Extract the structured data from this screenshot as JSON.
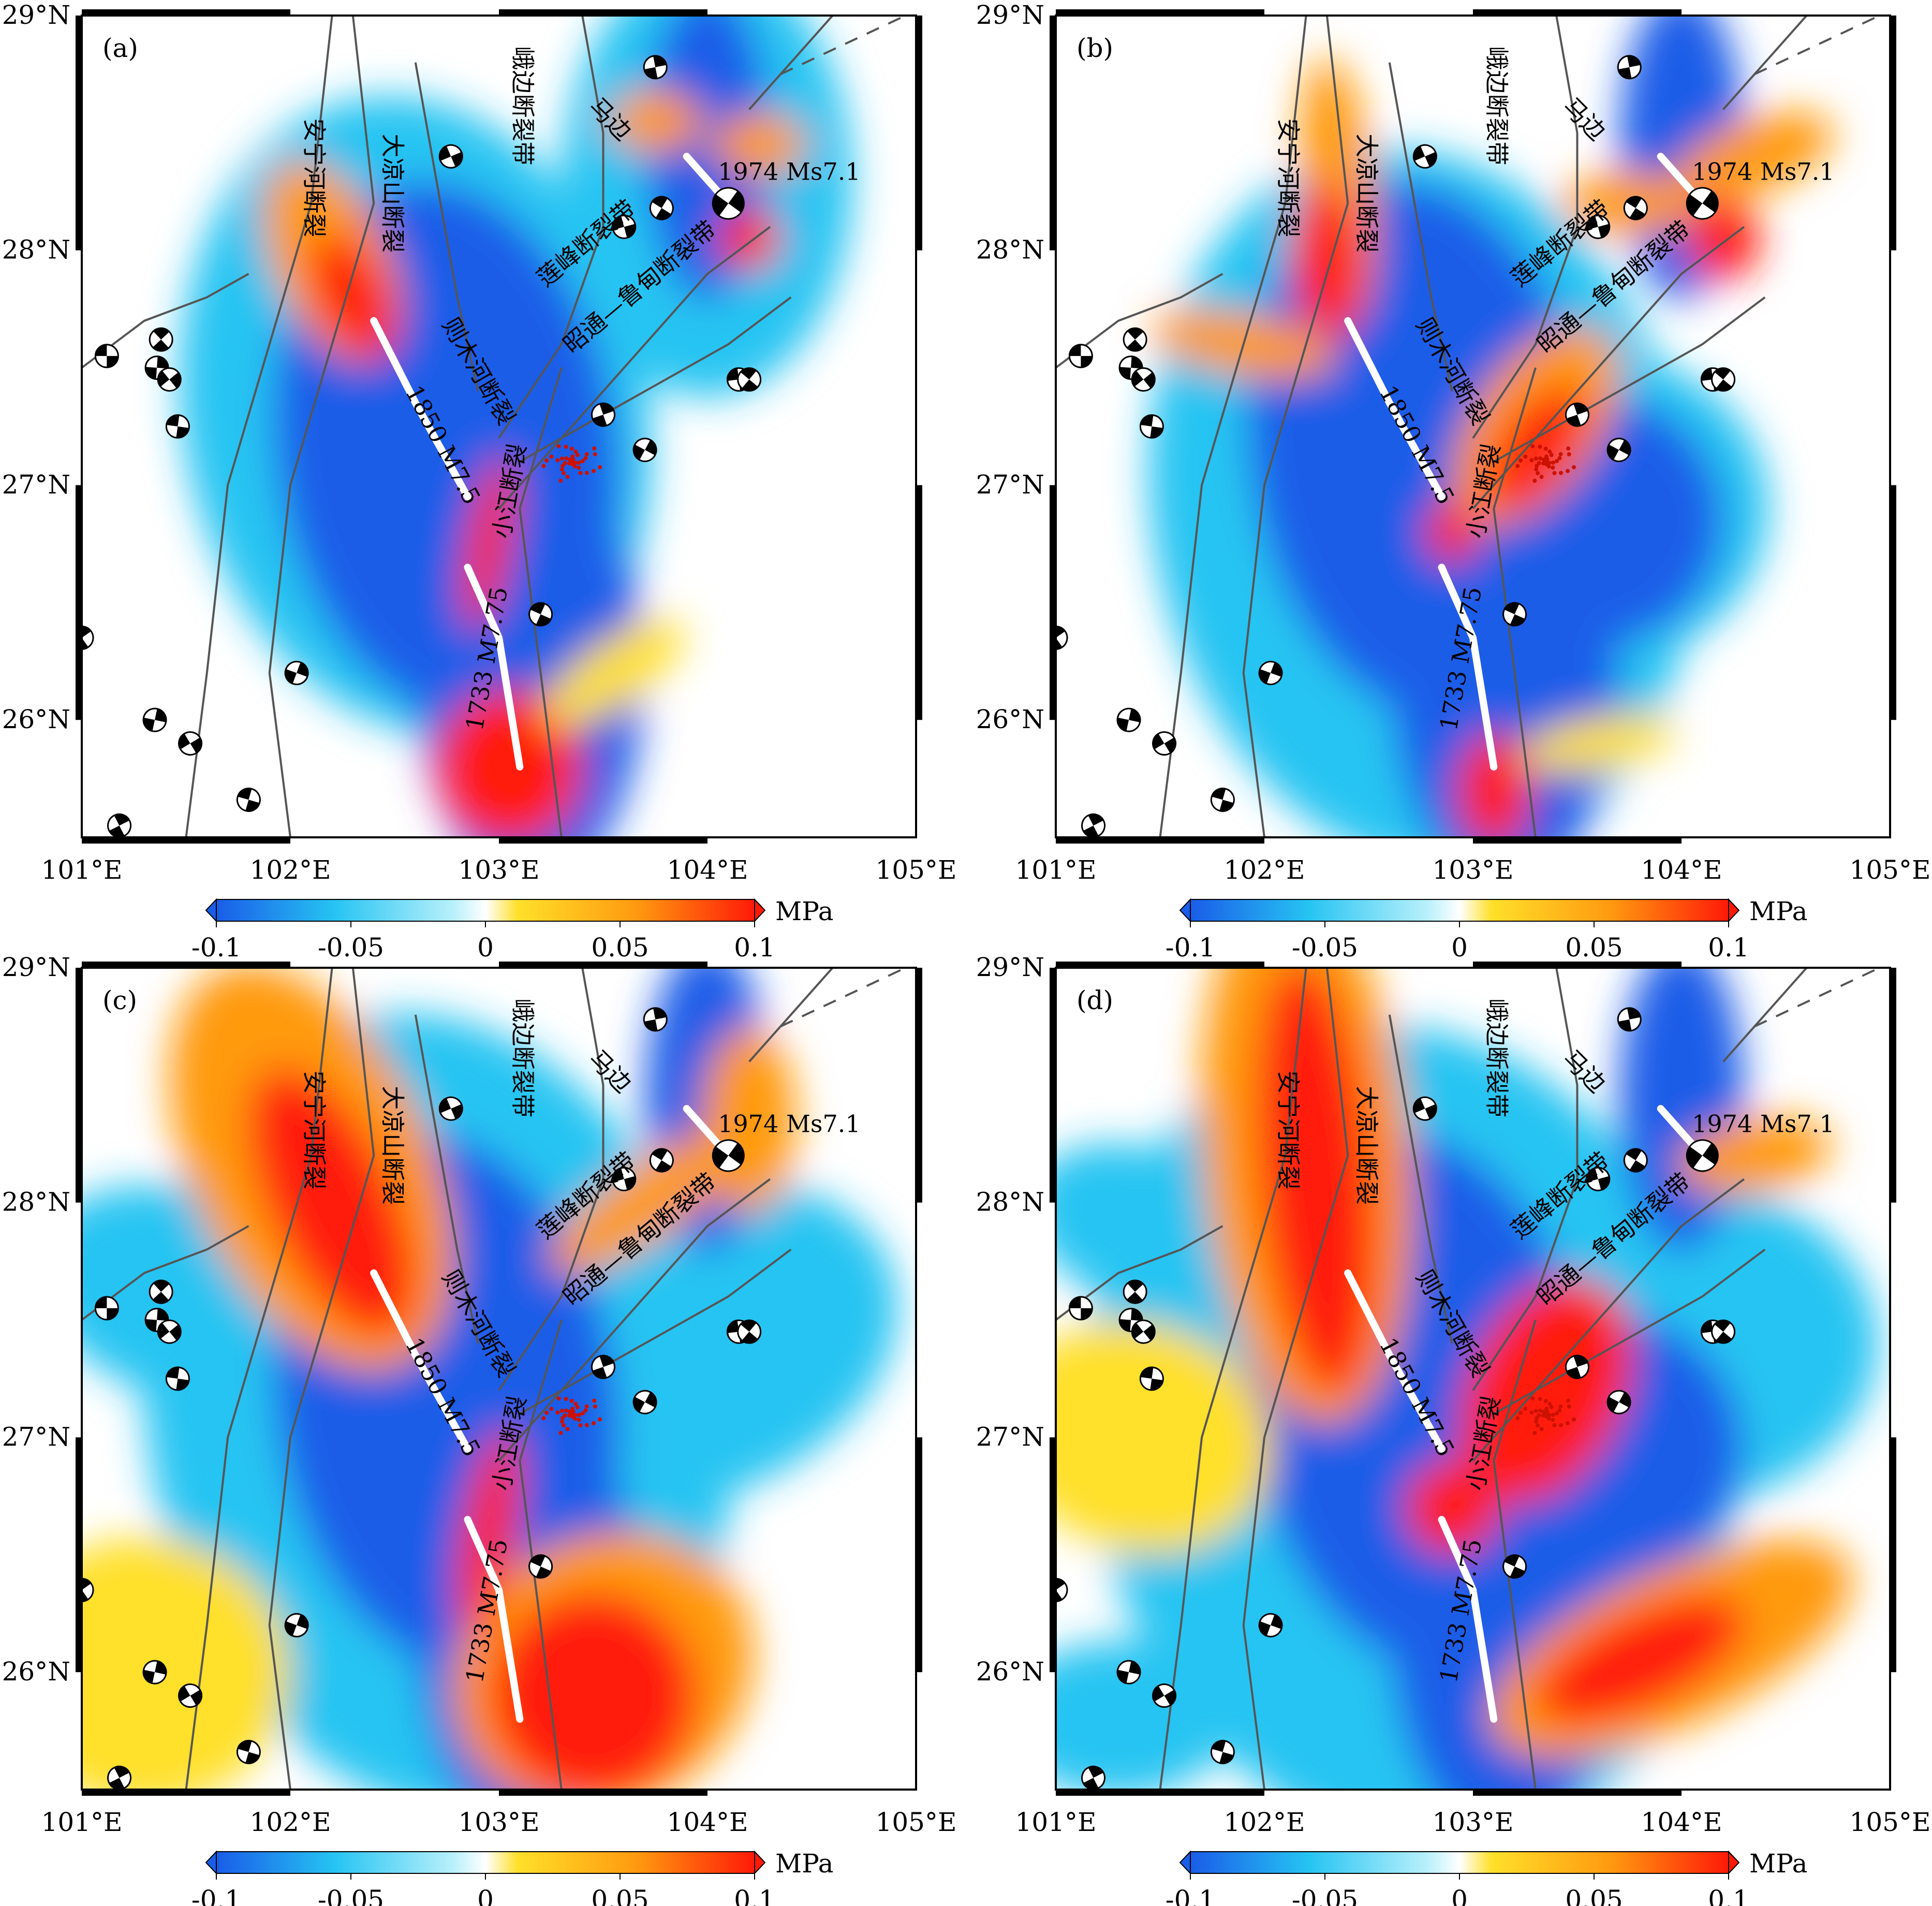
{
  "colors": {
    "neg_strong": "#1a5de8",
    "neg_mid": "#26c4f2",
    "neg_weak": "#b8f0fb",
    "neutral": "#ffffff",
    "pos_weak": "#ffe02a",
    "pos_mid": "#ff9a10",
    "pos_strong": "#ff1a08",
    "fault_trace": "#555555",
    "rupture": "#ffffff",
    "aftershock": "#cc1100"
  },
  "panels": [
    {
      "letter": "(a)"
    },
    {
      "letter": "(b)"
    },
    {
      "letter": "(c)"
    },
    {
      "letter": "(d)"
    }
  ],
  "axes": {
    "lon_ticks": [
      "101°E",
      "102°E",
      "103°E",
      "104°E",
      "105°E"
    ],
    "lat_ticks": [
      "29°N",
      "28°N",
      "27°N",
      "26°N"
    ]
  },
  "faults": {
    "anninghe": "安宁河断裂",
    "daliangshan": "大凉山断裂",
    "ebian": "峨边断裂带",
    "mabian": "马边",
    "lianfeng": "莲峰断裂带",
    "zhaotong": "昭通—鲁甸断裂带",
    "zemuhe": "则木河断裂",
    "xiaojiang": "小江断裂"
  },
  "events": {
    "e1974": "1974 Ms7.1",
    "e1850": "1850 M7.5",
    "e1733": "1733 M7.75"
  },
  "colorbar": {
    "unit": "MPa",
    "tick_labels": [
      "-0.1",
      "-0.05",
      "0",
      "0.05",
      "0.1"
    ],
    "range": [
      -0.1,
      0.1
    ]
  }
}
